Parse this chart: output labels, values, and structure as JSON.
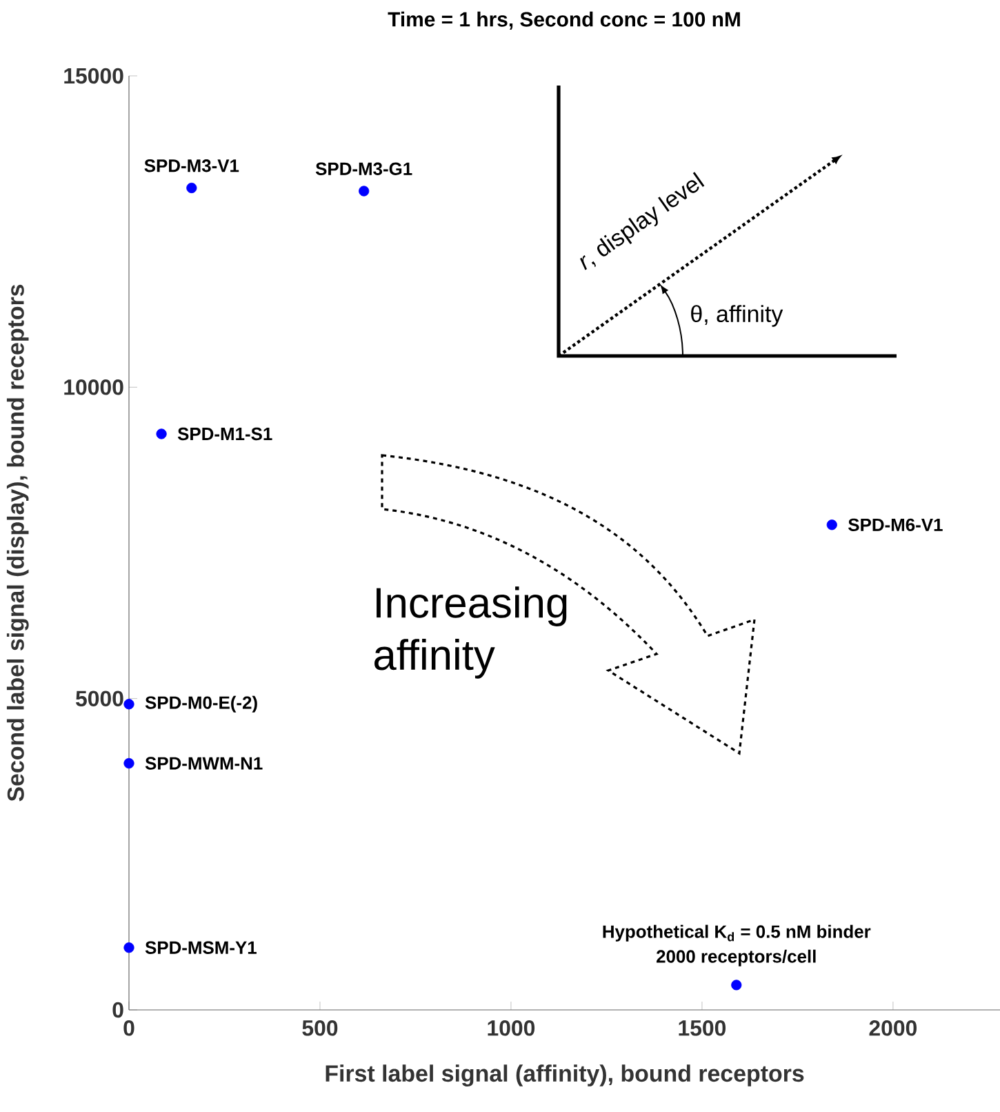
{
  "chart_data": {
    "type": "scatter",
    "title": "Time = 1 hrs, Second conc = 100 nM",
    "xlabel": "First label signal (affinity), bound receptors",
    "ylabel": "Second label signal (display), bound receptors",
    "xlim": [
      0,
      2280
    ],
    "ylim": [
      0,
      15000
    ],
    "xticks": [
      0,
      500,
      1000,
      1500,
      2000
    ],
    "yticks": [
      0,
      5000,
      10000,
      15000
    ],
    "marker": "circle",
    "grid": false,
    "series": [
      {
        "name": "SPD-M3-V1",
        "color": "#0000ff",
        "x": [
          164
        ],
        "values": [
          13200
        ]
      },
      {
        "name": "SPD-M3-G1",
        "color": "#0000ff",
        "x": [
          615
        ],
        "values": [
          13150
        ]
      },
      {
        "name": "SPD-M1-S1",
        "color": "#0000ff",
        "x": [
          85
        ],
        "values": [
          9250
        ]
      },
      {
        "name": "SPD-M6-V1",
        "color": "#0000ff",
        "x": [
          1840
        ],
        "values": [
          7790
        ]
      },
      {
        "name": "SPD-M0-E(-2)",
        "color": "#0000ff",
        "x": [
          0
        ],
        "values": [
          4910
        ]
      },
      {
        "name": "SPD-MWM-N1",
        "color": "#0000ff",
        "x": [
          0
        ],
        "values": [
          3960
        ]
      },
      {
        "name": "SPD-MSM-Y1",
        "color": "#0000ff",
        "x": [
          0
        ],
        "values": [
          1000
        ]
      },
      {
        "name": "Hypothetical K$_{d}$ = 0.5 nM binder",
        "color": "#0000ff",
        "x": [
          1590
        ],
        "values": [
          400
        ]
      }
    ],
    "annotations": [
      "*r*, display level",
      "θ, affinity",
      "Increasing affinity",
      {
        "text": "2000 receptors/cell",
        "x": 1590,
        "y": 400
      }
    ]
  }
}
